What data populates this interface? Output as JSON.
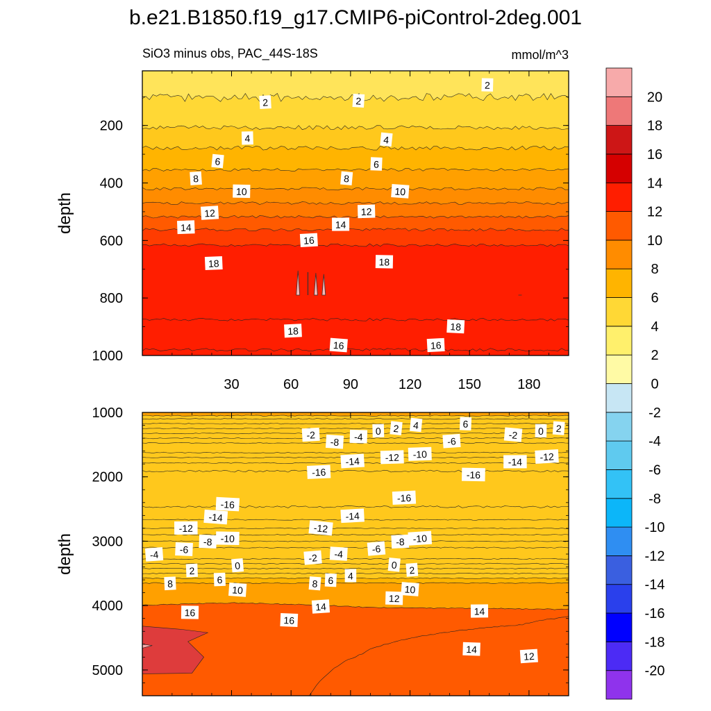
{
  "title": "b.e21.B1850.f19_g17.CMIP6-piControl-2deg.001",
  "subtitle_left": "SiO3 minus obs, PAC_44S-18S",
  "subtitle_right": "mmol/m^3",
  "chart_data": [
    {
      "type": "heatmap",
      "name": "upper panel (0-1000 m)",
      "xlabel": "",
      "ylabel": "depth",
      "xlim": [
        -15,
        200
      ],
      "ylim": [
        1000,
        10
      ],
      "x_ticks": [
        30,
        60,
        90,
        120,
        150,
        180
      ],
      "x_tick_labels": [
        "30",
        "60",
        "90",
        "120",
        "150",
        "180"
      ],
      "y_ticks": [
        200,
        400,
        600,
        800,
        1000
      ],
      "y_tick_labels": [
        "200",
        "400",
        "600",
        "800",
        "1000"
      ],
      "depth_profile": [
        [
          10,
          1.0
        ],
        [
          80,
          1.6
        ],
        [
          120,
          2.3
        ],
        [
          200,
          3.8
        ],
        [
          300,
          6.6
        ],
        [
          400,
          9.2
        ],
        [
          500,
          13.2
        ],
        [
          580,
          16.8
        ],
        [
          640,
          18.8
        ],
        [
          680,
          19.4
        ],
        [
          720,
          19.6
        ],
        [
          780,
          19.6
        ],
        [
          820,
          19.6
        ],
        [
          850,
          18.8
        ],
        [
          900,
          17.2
        ],
        [
          960,
          16.2
        ],
        [
          1000,
          15.8
        ]
      ],
      "contour_labels": [
        {
          "text": "2",
          "x": 47,
          "depth": 120
        },
        {
          "text": "2",
          "x": 94,
          "depth": 115
        },
        {
          "text": "2",
          "x": 159,
          "depth": 60
        },
        {
          "text": "4",
          "x": 38,
          "depth": 245
        },
        {
          "text": "4",
          "x": 108,
          "depth": 250
        },
        {
          "text": "6",
          "x": 23,
          "depth": 325
        },
        {
          "text": "6",
          "x": 103,
          "depth": 335
        },
        {
          "text": "8",
          "x": 12,
          "depth": 385
        },
        {
          "text": "8",
          "x": 88,
          "depth": 385
        },
        {
          "text": "10",
          "x": 35,
          "depth": 430
        },
        {
          "text": "10",
          "x": 115,
          "depth": 430
        },
        {
          "text": "12",
          "x": 19,
          "depth": 505
        },
        {
          "text": "12",
          "x": 98,
          "depth": 500
        },
        {
          "text": "14",
          "x": 7,
          "depth": 555
        },
        {
          "text": "14",
          "x": 85,
          "depth": 545
        },
        {
          "text": "16",
          "x": 69,
          "depth": 600
        },
        {
          "text": "18",
          "x": 21,
          "depth": 680
        },
        {
          "text": "18",
          "x": 107,
          "depth": 675
        },
        {
          "text": "18",
          "x": 61,
          "depth": 915
        },
        {
          "text": "18",
          "x": 143,
          "depth": 900
        },
        {
          "text": "16",
          "x": 84,
          "depth": 965
        },
        {
          "text": "16",
          "x": 133,
          "depth": 965
        }
      ]
    },
    {
      "type": "heatmap",
      "name": "lower panel (1000-5400 m)",
      "xlabel": "",
      "ylabel": "depth",
      "xlim": [
        -15,
        200
      ],
      "ylim": [
        5400,
        1000
      ],
      "y_ticks": [
        1000,
        2000,
        3000,
        4000,
        5000
      ],
      "y_tick_labels": [
        "1000",
        "2000",
        "3000",
        "4000",
        "5000"
      ],
      "depth_profile": [
        [
          1000,
          8
        ],
        [
          1100,
          4
        ],
        [
          1250,
          0
        ],
        [
          1400,
          -4
        ],
        [
          1550,
          -8
        ],
        [
          1700,
          -12
        ],
        [
          1850,
          -15.5
        ],
        [
          2100,
          -17.5
        ],
        [
          2400,
          -16.5
        ],
        [
          2600,
          -15
        ],
        [
          2800,
          -12
        ],
        [
          3000,
          -8
        ],
        [
          3200,
          -4
        ],
        [
          3350,
          0
        ],
        [
          3500,
          4
        ],
        [
          3650,
          8
        ],
        [
          3800,
          11
        ],
        [
          3950,
          13.5
        ],
        [
          4100,
          14.5
        ],
        [
          4300,
          15
        ],
        [
          4600,
          15
        ],
        [
          5000,
          15
        ],
        [
          5400,
          15
        ]
      ],
      "contour_labels": [
        {
          "text": "-2",
          "x": 70,
          "depth": 1350
        },
        {
          "text": "-8",
          "x": 82,
          "depth": 1460
        },
        {
          "text": "-4",
          "x": 94,
          "depth": 1380
        },
        {
          "text": "0",
          "x": 104,
          "depth": 1290
        },
        {
          "text": "2",
          "x": 113,
          "depth": 1250
        },
        {
          "text": "4",
          "x": 123,
          "depth": 1200
        },
        {
          "text": "6",
          "x": 148,
          "depth": 1180
        },
        {
          "text": "-6",
          "x": 141,
          "depth": 1450
        },
        {
          "text": "-2",
          "x": 172,
          "depth": 1350
        },
        {
          "text": "0",
          "x": 186,
          "depth": 1290
        },
        {
          "text": "2",
          "x": 195,
          "depth": 1250
        },
        {
          "text": "-14",
          "x": 91,
          "depth": 1760
        },
        {
          "text": "-12",
          "x": 111,
          "depth": 1700
        },
        {
          "text": "-10",
          "x": 125,
          "depth": 1650
        },
        {
          "text": "-14",
          "x": 173,
          "depth": 1770
        },
        {
          "text": "-12",
          "x": 189,
          "depth": 1690
        },
        {
          "text": "-16",
          "x": 74,
          "depth": 1930
        },
        {
          "text": "-16",
          "x": 152,
          "depth": 1970
        },
        {
          "text": "-16",
          "x": 117,
          "depth": 2330
        },
        {
          "text": "-16",
          "x": 28,
          "depth": 2430
        },
        {
          "text": "-14",
          "x": 22,
          "depth": 2630
        },
        {
          "text": "-14",
          "x": 91,
          "depth": 2610
        },
        {
          "text": "-12",
          "x": 7,
          "depth": 2800
        },
        {
          "text": "-12",
          "x": 75,
          "depth": 2800
        },
        {
          "text": "-10",
          "x": 28,
          "depth": 2960
        },
        {
          "text": "-10",
          "x": 125,
          "depth": 2960
        },
        {
          "text": "-8",
          "x": 18,
          "depth": 3010
        },
        {
          "text": "-8",
          "x": 115,
          "depth": 3010
        },
        {
          "text": "-6",
          "x": 6,
          "depth": 3130
        },
        {
          "text": "-6",
          "x": 103,
          "depth": 3120
        },
        {
          "text": "-4",
          "x": -9,
          "depth": 3210
        },
        {
          "text": "-4",
          "x": 84,
          "depth": 3200
        },
        {
          "text": "-2",
          "x": 71,
          "depth": 3260
        },
        {
          "text": "0",
          "x": 33,
          "depth": 3380
        },
        {
          "text": "0",
          "x": 112,
          "depth": 3370
        },
        {
          "text": "2",
          "x": 10,
          "depth": 3460
        },
        {
          "text": "2",
          "x": 121,
          "depth": 3450
        },
        {
          "text": "6",
          "x": 24,
          "depth": 3600
        },
        {
          "text": "6",
          "x": 80,
          "depth": 3610
        },
        {
          "text": "4",
          "x": 90,
          "depth": 3540
        },
        {
          "text": "8",
          "x": -1,
          "depth": 3660
        },
        {
          "text": "8",
          "x": 72,
          "depth": 3660
        },
        {
          "text": "10",
          "x": 33,
          "depth": 3760
        },
        {
          "text": "10",
          "x": 120,
          "depth": 3750
        },
        {
          "text": "12",
          "x": 112,
          "depth": 3890
        },
        {
          "text": "16",
          "x": 9,
          "depth": 4110
        },
        {
          "text": "14",
          "x": 75,
          "depth": 4020
        },
        {
          "text": "14",
          "x": 155,
          "depth": 4090
        },
        {
          "text": "16",
          "x": 59,
          "depth": 4230
        },
        {
          "text": "14",
          "x": 151,
          "depth": 4680
        },
        {
          "text": "12",
          "x": 180,
          "depth": 4790
        }
      ]
    }
  ],
  "colorbar": {
    "levels": [
      -20,
      -18,
      -16,
      -14,
      -12,
      -10,
      -8,
      -6,
      -4,
      -2,
      0,
      2,
      4,
      6,
      8,
      10,
      12,
      14,
      16,
      18,
      20
    ],
    "tick_labels": [
      "-20",
      "-18",
      "-16",
      "-14",
      "-12",
      "-10",
      "-8",
      "-6",
      "-4",
      "-2",
      "0",
      "2",
      "4",
      "6",
      "8",
      "10",
      "12",
      "14",
      "16",
      "18",
      "20"
    ],
    "colors": [
      "#8f33ec",
      "#4c2bf5",
      "#0000ff",
      "#1a2cf0",
      "#2a48e8",
      "#3a5fe0",
      "#3c77e3",
      "#2f8ef2",
      "#1ea3f6",
      "#0cb6f9",
      "#33c2f6",
      "#5fcaef",
      "#85d3ef",
      "#a6dcef",
      "#c7e6f4",
      "#fffaa5",
      "#fff06c",
      "#ffe45a",
      "#ffd835",
      "#ffc81c",
      "#ffb400",
      "#ffa000",
      "#ff8c00",
      "#ff7800",
      "#ff5a00",
      "#ff3c00",
      "#ff1e00",
      "#ee0000",
      "#d50000",
      "#c60a0a",
      "#cd1616",
      "#de3c3c",
      "#ee7878",
      "#f7aaaa"
    ]
  }
}
